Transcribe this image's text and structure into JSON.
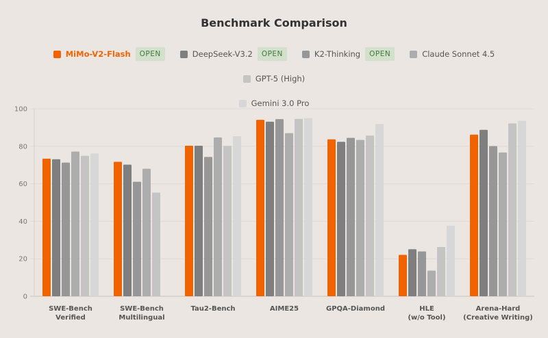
{
  "chart_data": {
    "type": "bar",
    "title": "Benchmark Comparison",
    "categories": [
      [
        "SWE-Bench",
        "Verified"
      ],
      [
        "SWE-Bench",
        "Multilingual"
      ],
      [
        "Tau2-Bench"
      ],
      [
        "AIME25"
      ],
      [
        "GPQA-Diamond"
      ],
      [
        "HLE",
        "(w/o Tool)"
      ],
      [
        "Arena-Hard",
        "(Creative Writing)"
      ]
    ],
    "series": [
      {
        "name": "MiMo-V2-Flash",
        "color": "#f06400",
        "open": true,
        "highlight": true,
        "values": [
          73.4,
          71.7,
          80.3,
          94.1,
          83.7,
          22.1,
          86.2
        ]
      },
      {
        "name": "DeepSeek-V3.2",
        "color": "#7f7f7f",
        "open": true,
        "values": [
          73.1,
          70.2,
          80.3,
          93.1,
          82.4,
          25.1,
          88.8
        ]
      },
      {
        "name": "K2-Thinking",
        "color": "#979797",
        "open": true,
        "values": [
          71.3,
          61.1,
          74.3,
          94.5,
          84.5,
          23.9,
          80.1
        ]
      },
      {
        "name": "Claude Sonnet 4.5",
        "color": "#adadad",
        "open": false,
        "values": [
          77.2,
          68.0,
          84.7,
          87.0,
          83.4,
          13.7,
          76.7
        ]
      },
      {
        "name": "GPT-5 (High)",
        "color": "#c4c4c4",
        "open": false,
        "values": [
          74.9,
          55.3,
          80.2,
          94.6,
          85.7,
          26.3,
          92.2
        ]
      },
      {
        "name": "Gemini 3.0 Pro",
        "color": "#d7d7d7",
        "open": false,
        "values": [
          76.2,
          null,
          85.4,
          95.0,
          91.9,
          37.7,
          93.6
        ]
      }
    ],
    "open_badge": "OPEN",
    "ylim": [
      0,
      100
    ],
    "yticks": [
      "0",
      "20",
      "40",
      "60",
      "80",
      "100"
    ],
    "grid": true,
    "legend_position": "top"
  }
}
